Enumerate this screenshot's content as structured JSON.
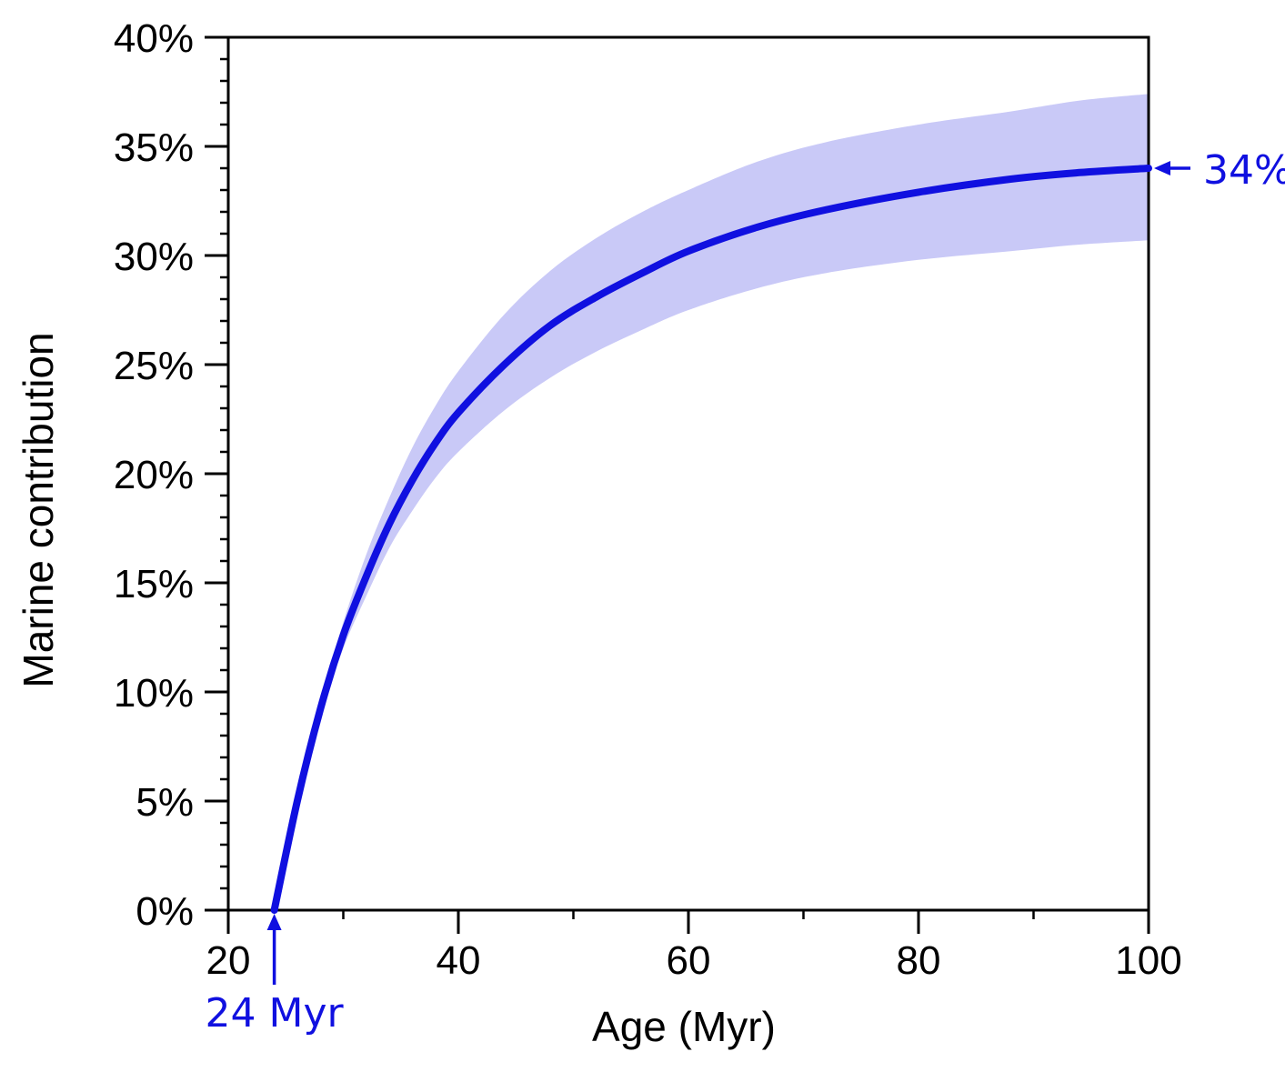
{
  "chart_data": {
    "type": "line",
    "title": "",
    "xlabel": "Age (Myr)",
    "ylabel": "Marine contribution",
    "xlim": [
      20,
      100
    ],
    "ylim": [
      0,
      40
    ],
    "x_ticks": [
      20,
      40,
      60,
      80,
      100
    ],
    "x_tick_labels": [
      "20",
      "40",
      "60",
      "80",
      "100"
    ],
    "y_ticks": [
      0,
      5,
      10,
      15,
      20,
      25,
      30,
      35,
      40
    ],
    "y_tick_labels": [
      "0%",
      "5%",
      "10%",
      "15%",
      "20%",
      "25%",
      "30%",
      "35%",
      "40%"
    ],
    "grid": false,
    "colors": {
      "line": "#1010e0",
      "band": "#c9c9f7",
      "axis": "#000000"
    },
    "series": [
      {
        "x": [
          24,
          26,
          28,
          30,
          32,
          34,
          36,
          38,
          40,
          44,
          48,
          52,
          56,
          60,
          66,
          72,
          80,
          88,
          94,
          100
        ],
        "values": [
          0,
          5.0,
          9.2,
          12.6,
          15.3,
          17.7,
          19.7,
          21.4,
          22.8,
          25.0,
          26.8,
          28.1,
          29.2,
          30.2,
          31.3,
          32.1,
          32.9,
          33.5,
          33.8,
          34.0
        ]
      }
    ],
    "band": {
      "x": [
        26,
        28,
        30,
        32,
        34,
        36,
        38,
        40,
        44,
        48,
        52,
        56,
        60,
        66,
        72,
        80,
        88,
        94,
        100
      ],
      "upper": [
        5.1,
        9.5,
        13.2,
        16.3,
        18.9,
        21.2,
        23.1,
        24.7,
        27.3,
        29.3,
        30.8,
        32.0,
        33.0,
        34.3,
        35.2,
        36.0,
        36.6,
        37.1,
        37.4
      ],
      "lower": [
        4.9,
        8.9,
        12.0,
        14.4,
        16.6,
        18.3,
        19.8,
        21.0,
        22.9,
        24.4,
        25.6,
        26.6,
        27.5,
        28.5,
        29.2,
        29.8,
        30.2,
        30.5,
        30.7
      ]
    },
    "annotations": [
      {
        "text": "24 Myr",
        "x": 24,
        "y": 0,
        "arrow": "up"
      },
      {
        "text": "34%",
        "x": 100,
        "y": 34,
        "arrow": "left"
      }
    ]
  }
}
